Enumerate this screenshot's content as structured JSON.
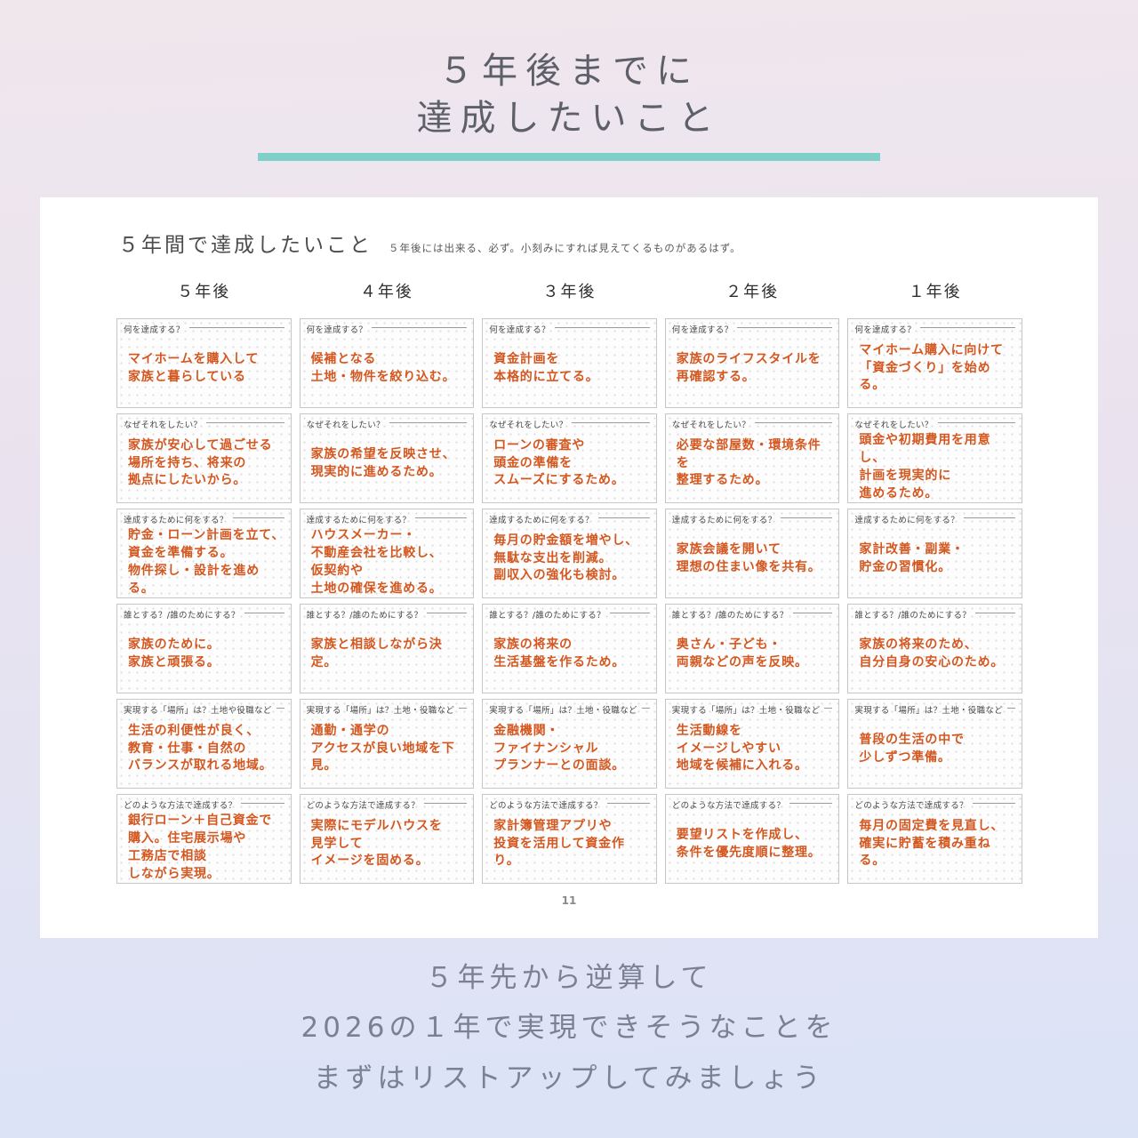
{
  "page": {
    "title_lines": [
      "５年後までに",
      "達成したいこと"
    ],
    "accent_color": "#7fd0c8",
    "hand_color": "#d4571f",
    "page_number": "11",
    "footer_lines": [
      "５年先から逆算して",
      "2026の１年で実現できそうなことを",
      "まずはリストアップしてみましょう"
    ]
  },
  "worksheet": {
    "title": "５年間で達成したいこと",
    "subtitle": "５年後には出来る、必ず。小刻みにすれば見えてくるものがあるはず。",
    "columns": [
      "５年後",
      "４年後",
      "３年後",
      "２年後",
      "１年後"
    ],
    "cards": [
      {
        "year": "５年後",
        "cells": [
          {
            "label": "何を達成する？",
            "text": "マイホームを購入して\n家族と暮らしている"
          },
          {
            "label": "なぜそれをしたい？",
            "text": "家族が安心して過ごせる\n場所を持ち、将来の\n拠点にしたいから。"
          },
          {
            "label": "達成するために何をする？",
            "text": "貯金・ローン計画を立て、\n資金を準備する。\n物件探し・設計を進める。"
          },
          {
            "label": "誰とする？/誰のためにする？",
            "text": "家族のために。\n家族と頑張る。"
          },
          {
            "label": "実現する「場所」は？土地や役職など",
            "text": "生活の利便性が良く、\n教育・仕事・自然の\nバランスが取れる地域。"
          },
          {
            "label": "どのような方法で達成する？",
            "text": "銀行ローン＋自己資金で\n購入。住宅展示場や\n工務店で相談\nしながら実現。"
          }
        ]
      },
      {
        "year": "４年後",
        "cells": [
          {
            "label": "何を達成する？",
            "text": "候補となる\n土地・物件を絞り込む。"
          },
          {
            "label": "なぜそれをしたい？",
            "text": "家族の希望を反映させ、\n現実的に進めるため。"
          },
          {
            "label": "達成するために何をする？",
            "text": "ハウスメーカー・\n不動産会社を比較し、\n仮契約や\n土地の確保を進める。"
          },
          {
            "label": "誰とする？/誰のためにする？",
            "text": "家族と相談しながら決定。"
          },
          {
            "label": "実現する「場所」は？土地・役職など",
            "text": "通勤・通学の\nアクセスが良い地域を下見。"
          },
          {
            "label": "どのような方法で達成する？",
            "text": "実際にモデルハウスを\n見学して\nイメージを固める。"
          }
        ]
      },
      {
        "year": "３年後",
        "cells": [
          {
            "label": "何を達成する？",
            "text": "資金計画を\n本格的に立てる。"
          },
          {
            "label": "なぜそれをしたい？",
            "text": "ローンの審査や\n頭金の準備を\nスムーズにするため。"
          },
          {
            "label": "達成するために何をする？",
            "text": "毎月の貯金額を増やし、\n無駄な支出を削減。\n副収入の強化も検討。"
          },
          {
            "label": "誰とする？/誰のためにする？",
            "text": "家族の将来の\n生活基盤を作るため。"
          },
          {
            "label": "実現する「場所」は？土地・役職など",
            "text": "金融機関・\nファイナンシャル\nプランナーとの面談。"
          },
          {
            "label": "どのような方法で達成する？",
            "text": "家計簿管理アプリや\n投資を活用して資金作り。"
          }
        ]
      },
      {
        "year": "２年後",
        "cells": [
          {
            "label": "何を達成する？",
            "text": "家族のライフスタイルを\n再確認する。"
          },
          {
            "label": "なぜそれをしたい？",
            "text": "必要な部屋数・環境条件を\n整理するため。"
          },
          {
            "label": "達成するために何をする？",
            "text": "家族会議を開いて\n理想の住まい像を共有。"
          },
          {
            "label": "誰とする？/誰のためにする？",
            "text": "奥さん・子ども・\n両親などの声を反映。"
          },
          {
            "label": "実現する「場所」は？土地・役職など",
            "text": "生活動線を\nイメージしやすい\n地域を候補に入れる。"
          },
          {
            "label": "どのような方法で達成する？",
            "text": "要望リストを作成し、\n条件を優先度順に整理。"
          }
        ]
      },
      {
        "year": "１年後",
        "cells": [
          {
            "label": "何を達成する？",
            "text": "マイホーム購入に向けて\n「資金づくり」を始める。"
          },
          {
            "label": "なぜそれをしたい？",
            "text": "頭金や初期費用を用意し、\n計画を現実的に\n進めるため。"
          },
          {
            "label": "達成するために何をする？",
            "text": "家計改善・副業・\n貯金の習慣化。"
          },
          {
            "label": "誰とする？/誰のためにする？",
            "text": "家族の将来のため、\n自分自身の安心のため。"
          },
          {
            "label": "実現する「場所」は？土地・役職など",
            "text": "普段の生活の中で\n少しずつ準備。"
          },
          {
            "label": "どのような方法で達成する？",
            "text": "毎月の固定費を見直し、\n確実に貯蓄を積み重ねる。"
          }
        ]
      }
    ]
  }
}
